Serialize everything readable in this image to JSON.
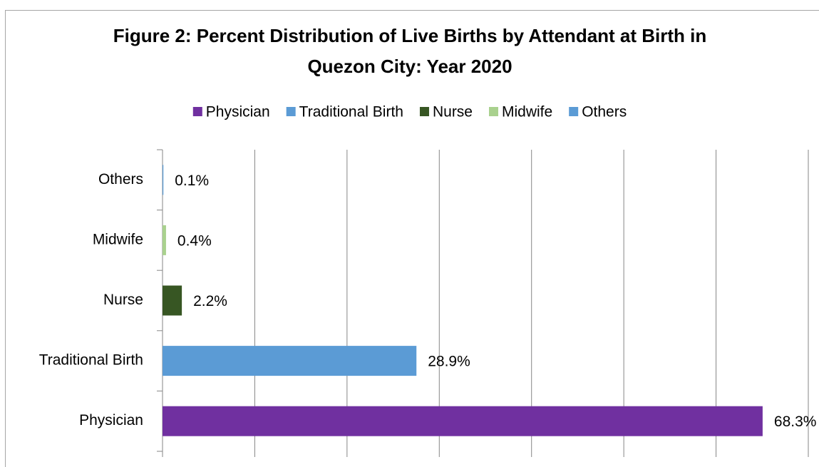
{
  "chart_data": {
    "type": "hbar",
    "title": "Figure 2: Percent Distribution of Live Births by Attendant at Birth in Quezon City: Year 2020",
    "categories": [
      "Physician",
      "Traditional Birth",
      "Nurse",
      "Midwife",
      "Others"
    ],
    "values": [
      68.3,
      28.9,
      2.2,
      0.4,
      0.1
    ],
    "value_labels": [
      "68.3%",
      "28.9%",
      "2.2%",
      "0.4%",
      "0.1%"
    ],
    "colors": [
      "#7030a0",
      "#5b9bd5",
      "#375623",
      "#a9d18e",
      "#5b9bd5"
    ],
    "xlim": [
      0,
      73.5
    ],
    "xticks": [
      0,
      10.5,
      21,
      31.5,
      42,
      52.5,
      63,
      73.5
    ],
    "grid": true,
    "legend": "top"
  }
}
